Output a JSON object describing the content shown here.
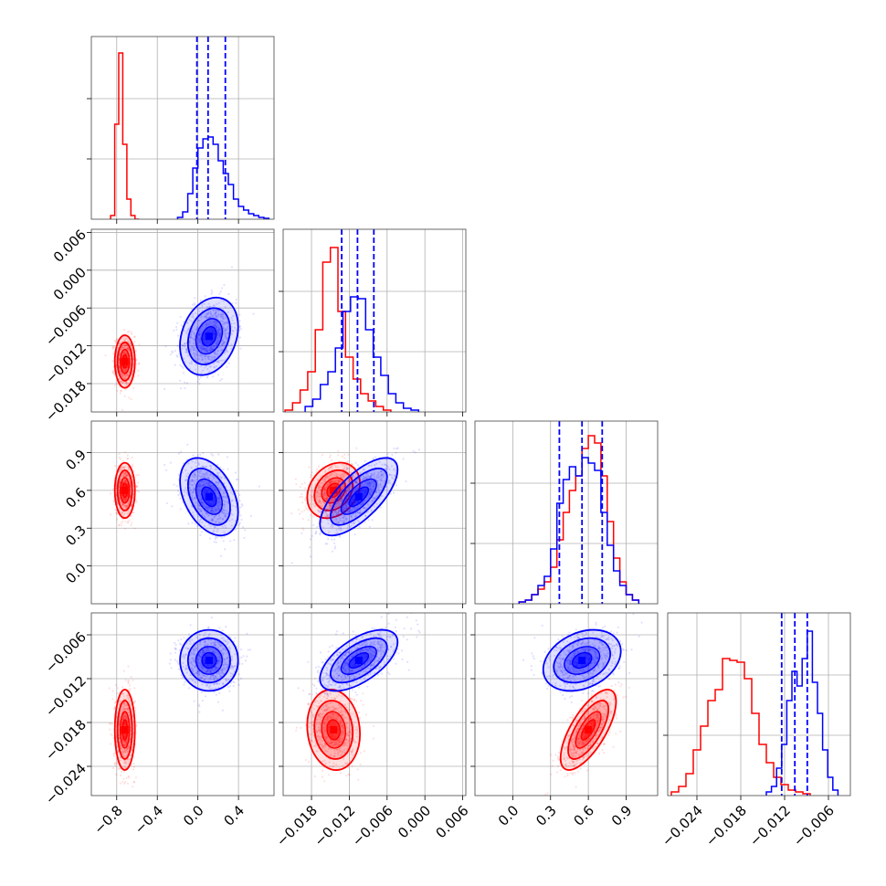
{
  "colors": {
    "series_a": "#ff0000",
    "series_b": "#0000ff",
    "grid": "#b0b0b0",
    "frame": "#444444"
  },
  "chart_data": {
    "type": "corner",
    "grid": true,
    "n_parameters": 4,
    "parameters": [
      {
        "range": [
          -1.05,
          0.75
        ],
        "tick_values": [
          -0.8,
          -0.4,
          0.0,
          0.4
        ],
        "tick_labels": [
          "−0.8",
          "−0.4",
          "0.0",
          "0.4"
        ]
      },
      {
        "range": [
          -0.0225,
          0.0065
        ],
        "tick_values": [
          -0.018,
          -0.012,
          -0.006,
          0.0,
          0.006
        ],
        "tick_labels": [
          "−0.018",
          "−0.012",
          "−0.006",
          "0.000",
          "0.006"
        ]
      },
      {
        "range": [
          -0.3,
          1.15
        ],
        "tick_values": [
          0.0,
          0.3,
          0.6,
          0.9
        ],
        "tick_labels": [
          "0.0",
          "0.3",
          "0.6",
          "0.9"
        ]
      },
      {
        "range": [
          -0.028,
          -0.003
        ],
        "tick_values": [
          -0.024,
          -0.018,
          -0.012,
          -0.006
        ],
        "tick_labels": [
          "−0.024",
          "−0.018",
          "−0.012",
          "−0.006"
        ]
      }
    ],
    "series": [
      {
        "color": "#ff0000",
        "means": [
          -0.72,
          -0.0145,
          0.6,
          -0.019
        ],
        "sds": [
          0.045,
          0.0019,
          0.1,
          0.0025
        ],
        "correlations": {
          "0-1": 0.0,
          "0-2": 0.0,
          "0-3": 0.0,
          "1-2": 0.25,
          "1-3": -0.1,
          "2-3": 0.7
        },
        "hist": [
          {
            "edges": [
              -0.86,
              -0.82,
              -0.78,
              -0.74,
              -0.7,
              -0.66,
              -0.62,
              -0.58
            ],
            "counts": [
              0.02,
              0.52,
              0.91,
              0.41,
              0.11,
              0.02,
              0.0
            ]
          },
          {
            "edges": [
              -0.0222,
              -0.021,
              -0.0198,
              -0.0186,
              -0.0174,
              -0.0162,
              -0.015,
              -0.0138,
              -0.0126,
              -0.0114,
              -0.0102,
              -0.009,
              -0.0078,
              -0.0066,
              -0.0054
            ],
            "counts": [
              0.01,
              0.05,
              0.12,
              0.22,
              0.45,
              0.82,
              0.9,
              0.55,
              0.3,
              0.18,
              0.1,
              0.06,
              0.03,
              0.01
            ]
          },
          {
            "edges": [
              0.05,
              0.1,
              0.15,
              0.2,
              0.25,
              0.3,
              0.35,
              0.4,
              0.45,
              0.5,
              0.55,
              0.6,
              0.65,
              0.7,
              0.75,
              0.8,
              0.85,
              0.9,
              0.95,
              1.0
            ],
            "counts": [
              0.01,
              0.02,
              0.05,
              0.08,
              0.12,
              0.2,
              0.35,
              0.5,
              0.62,
              0.7,
              0.85,
              0.92,
              0.88,
              0.7,
              0.45,
              0.25,
              0.12,
              0.05,
              0.02
            ]
          },
          {
            "edges": [
              -0.0275,
              -0.0265,
              -0.0255,
              -0.0245,
              -0.0235,
              -0.0225,
              -0.0215,
              -0.0205,
              -0.0195,
              -0.0185,
              -0.0175,
              -0.0165,
              -0.0155,
              -0.0145,
              -0.0135,
              -0.0125,
              -0.0115,
              -0.0105,
              -0.0095,
              -0.0085
            ],
            "counts": [
              0.02,
              0.05,
              0.12,
              0.25,
              0.38,
              0.52,
              0.58,
              0.75,
              0.74,
              0.73,
              0.64,
              0.45,
              0.28,
              0.18,
              0.1,
              0.06,
              0.03,
              0.02,
              0.01
            ]
          }
        ]
      },
      {
        "color": "#0000ff",
        "means": [
          0.11,
          -0.0105,
          0.55,
          -0.0095
        ],
        "sds": [
          0.13,
          0.0028,
          0.14,
          0.0019
        ],
        "correlations": {
          "0-1": 0.25,
          "0-2": -0.4,
          "0-3": 0.0,
          "1-2": 0.7,
          "1-3": 0.6,
          "2-3": 0.3
        },
        "quantiles": [
          [
            -0.01,
            0.1,
            0.27
          ],
          [
            -0.0132,
            -0.0107,
            -0.0081
          ],
          [
            0.37,
            0.55,
            0.71
          ],
          [
            -0.0124,
            -0.0106,
            -0.0089
          ]
        ],
        "hist": [
          {
            "edges": [
              -0.2,
              -0.15,
              -0.1,
              -0.05,
              0.0,
              0.05,
              0.1,
              0.15,
              0.2,
              0.25,
              0.3,
              0.35,
              0.4,
              0.45,
              0.5,
              0.55,
              0.6,
              0.65,
              0.7
            ],
            "counts": [
              0.01,
              0.04,
              0.14,
              0.28,
              0.39,
              0.44,
              0.45,
              0.41,
              0.32,
              0.25,
              0.19,
              0.11,
              0.07,
              0.05,
              0.03,
              0.02,
              0.01,
              0.005
            ]
          },
          {
            "edges": [
              -0.019,
              -0.0178,
              -0.0166,
              -0.0154,
              -0.0142,
              -0.013,
              -0.0118,
              -0.0106,
              -0.0094,
              -0.0082,
              -0.007,
              -0.0058,
              -0.0046,
              -0.0034,
              -0.0022,
              -0.001
            ],
            "counts": [
              0.03,
              0.07,
              0.15,
              0.22,
              0.35,
              0.55,
              0.63,
              0.62,
              0.45,
              0.3,
              0.2,
              0.1,
              0.05,
              0.02,
              0.01
            ]
          },
          {
            "edges": [
              0.05,
              0.1,
              0.15,
              0.2,
              0.25,
              0.3,
              0.35,
              0.4,
              0.45,
              0.5,
              0.55,
              0.6,
              0.65,
              0.7,
              0.75,
              0.8,
              0.85,
              0.9,
              0.95,
              1.0
            ],
            "counts": [
              0.01,
              0.02,
              0.05,
              0.1,
              0.15,
              0.3,
              0.55,
              0.68,
              0.75,
              0.7,
              0.8,
              0.77,
              0.73,
              0.5,
              0.32,
              0.18,
              0.1,
              0.05,
              0.02
            ]
          },
          {
            "edges": [
              -0.0145,
              -0.0138,
              -0.0131,
              -0.0124,
              -0.0117,
              -0.011,
              -0.0103,
              -0.0096,
              -0.0089,
              -0.0082,
              -0.0075,
              -0.0068,
              -0.0061,
              -0.0054,
              -0.0047
            ],
            "counts": [
              0.02,
              0.05,
              0.15,
              0.28,
              0.52,
              0.68,
              0.6,
              0.75,
              0.9,
              0.62,
              0.45,
              0.25,
              0.1,
              0.03
            ]
          }
        ]
      }
    ]
  }
}
